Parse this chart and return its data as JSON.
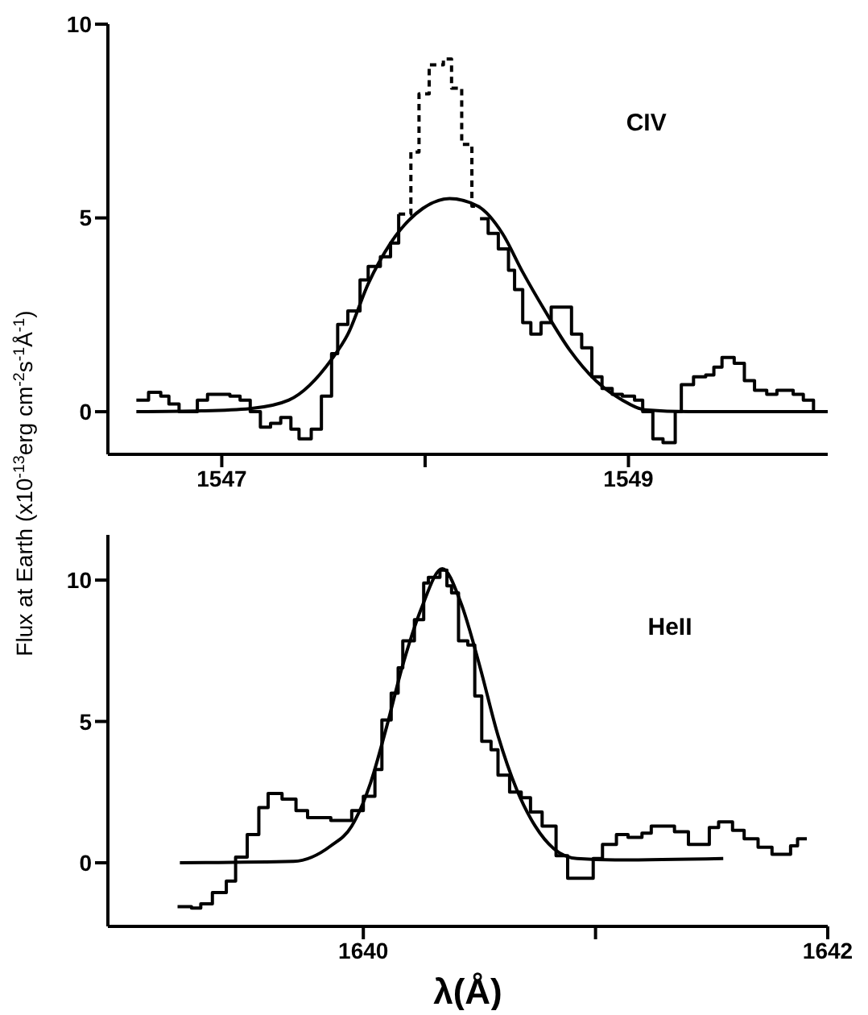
{
  "chart_data": [
    {
      "type": "step",
      "ylabel": "Flux at Earth  (x10$^{-13}$erg cm$^{-2}$s$^{-1}$Å$^{-1}$)",
      "annotations": [
        "CIV"
      ],
      "xlim": [
        1546.44,
        1549.98
      ],
      "xticks": [
        1547,
        {
          "value": 1548,
          "label": null
        },
        1549
      ],
      "ylim": [
        -1.1,
        10
      ],
      "yticks": [
        0,
        5,
        10
      ],
      "marker": "none",
      "series": [
        {
          "color": "#000000",
          "line_style": "solid",
          "x": [
            1546.58,
            1546.64,
            1546.7,
            1546.74,
            1546.79,
            1546.88,
            1546.93,
            1547.04,
            1547.09,
            1547.14,
            1547.19,
            1547.24,
            1547.29,
            1547.34,
            1547.38,
            1547.44,
            1547.49,
            1547.54,
            1547.57,
            1547.62,
            1547.68,
            1547.72,
            1547.78,
            1547.83,
            1547.87,
            1547.93,
            1548.27,
            1548.31,
            1548.36,
            1548.41,
            1548.44,
            1548.48,
            1548.52,
            1548.57,
            1548.62,
            1548.72,
            1548.77,
            1548.82,
            1548.87,
            1548.92,
            1548.97,
            1549.03,
            1549.07,
            1549.12,
            1549.17,
            1549.23,
            1549.26,
            1549.32,
            1549.38,
            1549.42,
            1549.46,
            1549.52,
            1549.57,
            1549.62,
            1549.68,
            1549.73,
            1549.81,
            1549.86,
            1549.91
          ],
          "values": [
            0.3,
            0.5,
            0.4,
            0.2,
            0,
            0.3,
            0.45,
            0.4,
            0.3,
            0,
            -0.4,
            -0.3,
            -0.15,
            -0.45,
            -0.7,
            -0.45,
            0.4,
            1.5,
            2.25,
            2.6,
            3.4,
            3.75,
            4.0,
            4.35,
            5.1,
            null,
            4.98,
            4.6,
            4.2,
            3.65,
            3.15,
            2.3,
            2.0,
            2.3,
            2.7,
            2.0,
            1.65,
            0.9,
            0.6,
            0.45,
            0.4,
            0.3,
            0,
            -0.7,
            -0.8,
            0,
            0.7,
            0.9,
            0.95,
            1.15,
            1.4,
            1.25,
            0.8,
            0.55,
            0.45,
            0.55,
            0.45,
            0.3,
            0
          ]
        },
        {
          "color": "#000000",
          "line_style": "dashed",
          "x": [
            1547.87,
            1547.93,
            1547.97,
            1548.02,
            1548.09,
            1548.13,
            1548.18,
            1548.23,
            1548.27
          ],
          "values": [
            5.1,
            6.7,
            8.2,
            8.95,
            9.1,
            8.35,
            6.9,
            5.3,
            5.3
          ]
        },
        {
          "type": "line",
          "color": "#000000",
          "line_style": "solid",
          "x": [
            1546.58,
            1546.9,
            1547.14,
            1547.33,
            1547.54,
            1547.62,
            1547.72,
            1547.83,
            1547.99,
            1548.12,
            1548.26,
            1548.38,
            1548.48,
            1548.59,
            1548.71,
            1548.84,
            1548.97,
            1549.08,
            1549.3,
            1549.98
          ],
          "values": [
            0,
            0.02,
            0.08,
            0.3,
            1.35,
            2.0,
            3.3,
            4.35,
            5.25,
            5.5,
            5.3,
            4.6,
            3.6,
            2.6,
            1.6,
            0.8,
            0.3,
            0.05,
            0,
            0
          ]
        }
      ]
    },
    {
      "type": "step",
      "xlabel": "λ(Å)",
      "annotations": [
        "HeII"
      ],
      "xlim": [
        1638.9,
        1642
      ],
      "xticks": [
        1640,
        {
          "value": 1641,
          "label": null
        },
        1642
      ],
      "ylim": [
        -2.25,
        11.6
      ],
      "yticks": [
        0,
        5,
        10
      ],
      "marker": "none",
      "series": [
        {
          "color": "#000000",
          "line_style": "solid",
          "x": [
            1639.2,
            1639.26,
            1639.3,
            1639.35,
            1639.41,
            1639.45,
            1639.5,
            1639.55,
            1639.59,
            1639.65,
            1639.71,
            1639.76,
            1639.86,
            1639.95,
            1640.0,
            1640.05,
            1640.08,
            1640.12,
            1640.15,
            1640.17,
            1640.22,
            1640.26,
            1640.28,
            1640.33,
            1640.36,
            1640.38,
            1640.41,
            1640.45,
            1640.48,
            1640.51,
            1640.55,
            1640.58,
            1640.63,
            1640.68,
            1640.72,
            1640.77,
            1640.83,
            1640.88,
            1640.99,
            1641.03,
            1641.09,
            1641.14,
            1641.2,
            1641.24,
            1641.34,
            1641.4,
            1641.49,
            1641.53,
            1641.59,
            1641.64,
            1641.7,
            1641.76,
            1641.84,
            1641.87,
            1641.91
          ],
          "values": [
            -1.55,
            -1.6,
            -1.45,
            -1.05,
            -0.65,
            0.2,
            1.0,
            1.95,
            2.45,
            2.25,
            1.85,
            1.6,
            1.5,
            1.85,
            2.35,
            3.3,
            5.05,
            6.0,
            6.9,
            7.85,
            8.6,
            9.9,
            10.1,
            10.35,
            9.8,
            9.55,
            7.85,
            7.7,
            5.9,
            4.3,
            4.0,
            3.1,
            2.5,
            2.3,
            1.8,
            1.3,
            0.25,
            -0.55,
            0.15,
            0.65,
            1.0,
            0.9,
            1.05,
            1.3,
            1.1,
            0.65,
            1.25,
            1.45,
            1.15,
            0.85,
            0.55,
            0.3,
            0.6,
            0.85,
            0.85
          ]
        },
        {
          "type": "line",
          "color": "#000000",
          "line_style": "solid",
          "x": [
            1639.21,
            1639.7,
            1639.86,
            1639.95,
            1640.03,
            1640.1,
            1640.17,
            1640.25,
            1640.34,
            1640.42,
            1640.5,
            1640.58,
            1640.66,
            1640.74,
            1640.82,
            1640.92,
            1641.1,
            1641.55
          ],
          "values": [
            0,
            0.05,
            0.6,
            1.3,
            2.8,
            4.8,
            7.0,
            9.0,
            10.4,
            9.2,
            7.0,
            4.5,
            2.6,
            1.3,
            0.5,
            0.15,
            0.1,
            0.15
          ]
        }
      ]
    }
  ]
}
